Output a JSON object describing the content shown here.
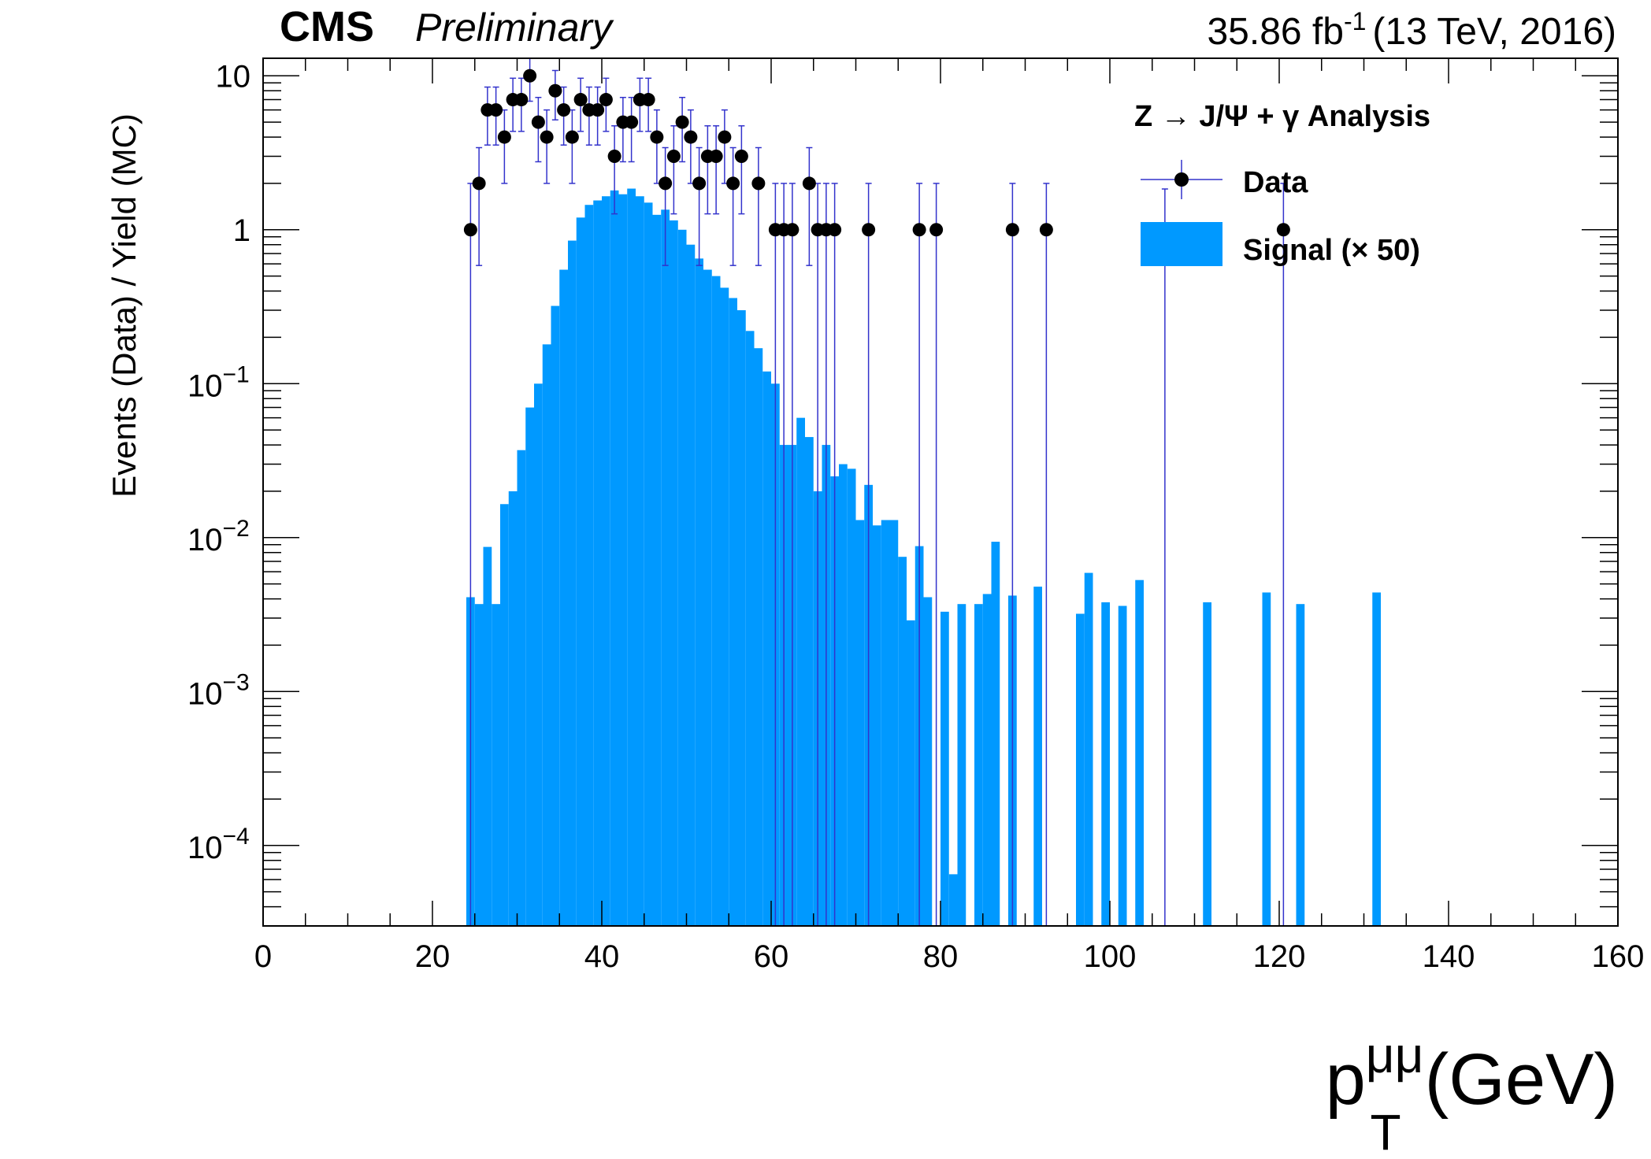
{
  "header": {
    "experiment": "CMS",
    "status": "Preliminary",
    "lumi_value": "35.86 fb",
    "lumi_exp": "-1",
    "lumi_tail": "(13 TeV, 2016)"
  },
  "legend": {
    "title": "Z → J/Ψ + γ Analysis",
    "data_label": "Data",
    "signal_label": "Signal (× 50)"
  },
  "axes": {
    "ylabel": "Events (Data) / Yield (MC)",
    "xlabel_main": "p",
    "xlabel_sup": "μμ",
    "xlabel_sub": "T",
    "xlabel_unit": "(GeV)"
  },
  "colors": {
    "signal_fill": "#0099ff",
    "data_marker": "#000000",
    "error_bar": "#3333cc",
    "frame": "#000000"
  },
  "chart_data": {
    "type": "bar",
    "title": "",
    "xlim": [
      0,
      160
    ],
    "ylim": [
      3e-05,
      13
    ],
    "log_y": true,
    "x_ticks": [
      0,
      20,
      40,
      60,
      80,
      100,
      120,
      140,
      160
    ],
    "x_tick_labels": [
      "0",
      "20",
      "40",
      "60",
      "80",
      "100",
      "120",
      "140",
      "160"
    ],
    "y_ticks": [
      {
        "value": 10,
        "base": "10",
        "exp": ""
      },
      {
        "value": 1,
        "base": "1",
        "exp": ""
      },
      {
        "value": 0.1,
        "base": "10",
        "exp": "−1"
      },
      {
        "value": 0.01,
        "base": "10",
        "exp": "−2"
      },
      {
        "value": 0.001,
        "base": "10",
        "exp": "−3"
      },
      {
        "value": 0.0001,
        "base": "10",
        "exp": "−4"
      }
    ],
    "signal": {
      "name": "Signal (× 50)",
      "bin_width": 1,
      "bins": [
        [
          24,
          0.0041
        ],
        [
          25,
          0.0037
        ],
        [
          26,
          0.0087
        ],
        [
          27,
          0.0037
        ],
        [
          28,
          0.0165
        ],
        [
          29,
          0.02
        ],
        [
          30,
          0.037
        ],
        [
          31,
          0.07
        ],
        [
          32,
          0.1
        ],
        [
          33,
          0.18
        ],
        [
          34,
          0.32
        ],
        [
          35,
          0.55
        ],
        [
          36,
          0.85
        ],
        [
          37,
          1.2
        ],
        [
          38,
          1.45
        ],
        [
          39,
          1.55
        ],
        [
          40,
          1.65
        ],
        [
          41,
          1.8
        ],
        [
          42,
          1.7
        ],
        [
          43,
          1.85
        ],
        [
          44,
          1.65
        ],
        [
          45,
          1.5
        ],
        [
          46,
          1.25
        ],
        [
          47,
          1.35
        ],
        [
          48,
          1.15
        ],
        [
          49,
          1.0
        ],
        [
          50,
          0.8
        ],
        [
          51,
          0.65
        ],
        [
          52,
          0.55
        ],
        [
          53,
          0.5
        ],
        [
          54,
          0.42
        ],
        [
          55,
          0.36
        ],
        [
          56,
          0.3
        ],
        [
          57,
          0.22
        ],
        [
          58,
          0.17
        ],
        [
          59,
          0.12
        ],
        [
          60,
          0.1
        ],
        [
          61,
          0.04
        ],
        [
          62,
          0.04
        ],
        [
          63,
          0.06
        ],
        [
          64,
          0.045
        ],
        [
          65,
          0.02
        ],
        [
          66,
          0.04
        ],
        [
          67,
          0.025
        ],
        [
          68,
          0.03
        ],
        [
          69,
          0.028
        ],
        [
          70,
          0.013
        ],
        [
          71,
          0.022
        ],
        [
          72,
          0.012
        ],
        [
          73,
          0.013
        ],
        [
          74,
          0.013
        ],
        [
          75,
          0.0075
        ],
        [
          76,
          0.0029
        ],
        [
          77,
          0.0088
        ],
        [
          78,
          0.0041
        ],
        [
          80,
          0.0033
        ],
        [
          81,
          6.5e-05
        ],
        [
          82,
          0.0037
        ],
        [
          84,
          0.0037
        ],
        [
          85,
          0.0043
        ],
        [
          86,
          0.0094
        ],
        [
          88,
          0.0042
        ],
        [
          91,
          0.0048
        ],
        [
          96,
          0.0032
        ],
        [
          97,
          0.0059
        ],
        [
          99,
          0.0038
        ],
        [
          101,
          0.0036
        ],
        [
          103,
          0.0053
        ],
        [
          111,
          0.0038
        ],
        [
          118,
          0.0044
        ],
        [
          122,
          0.0037
        ],
        [
          131,
          0.0044
        ]
      ]
    },
    "data": {
      "name": "Data",
      "points": [
        [
          24.5,
          1
        ],
        [
          25.5,
          2
        ],
        [
          26.5,
          6
        ],
        [
          27.5,
          6
        ],
        [
          28.5,
          4
        ],
        [
          29.5,
          7
        ],
        [
          30.5,
          7
        ],
        [
          31.5,
          10
        ],
        [
          32.5,
          5
        ],
        [
          33.5,
          4
        ],
        [
          34.5,
          8
        ],
        [
          35.5,
          6
        ],
        [
          36.5,
          4
        ],
        [
          37.5,
          7
        ],
        [
          38.5,
          6
        ],
        [
          39.5,
          6
        ],
        [
          40.5,
          7
        ],
        [
          41.5,
          3
        ],
        [
          42.5,
          5
        ],
        [
          43.5,
          5
        ],
        [
          44.5,
          7
        ],
        [
          45.5,
          7
        ],
        [
          46.5,
          4
        ],
        [
          47.5,
          2
        ],
        [
          48.5,
          3
        ],
        [
          49.5,
          5
        ],
        [
          50.5,
          4
        ],
        [
          51.5,
          2
        ],
        [
          52.5,
          3
        ],
        [
          53.5,
          3
        ],
        [
          54.5,
          4
        ],
        [
          55.5,
          2
        ],
        [
          56.5,
          3
        ],
        [
          58.5,
          2
        ],
        [
          60.5,
          1
        ],
        [
          61.5,
          1
        ],
        [
          62.5,
          1
        ],
        [
          64.5,
          2
        ],
        [
          65.5,
          1
        ],
        [
          66.5,
          1
        ],
        [
          67.5,
          1
        ],
        [
          71.5,
          1
        ],
        [
          77.5,
          1
        ],
        [
          79.5,
          1
        ],
        [
          88.5,
          1
        ],
        [
          92.5,
          1
        ],
        [
          120.5,
          1
        ]
      ],
      "zero_bin_error_lines": [
        106.5
      ]
    }
  }
}
